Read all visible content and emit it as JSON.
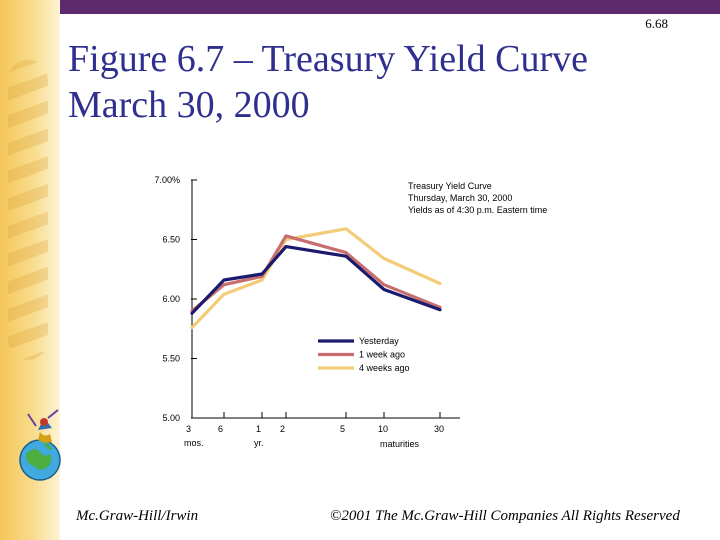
{
  "slide": {
    "number": "6.68",
    "title_line1": "Figure 6.7 – Treasury Yield Curve",
    "title_line2": "March 30, 2000",
    "footer_left": "Mc.Graw-Hill/Irwin",
    "footer_right": "©2001 The Mc.Graw-Hill Companies All Rights Reserved",
    "accent_color": "#5e2a6e",
    "title_color": "#2f2f8f"
  },
  "chart_data": {
    "type": "line",
    "title": "Treasury Yield Curve",
    "subtitle_lines": [
      "Thursday, March 30, 2000",
      "Yields as of 4:30 p.m. Eastern time"
    ],
    "xlabel": "maturities",
    "ylim": [
      5.0,
      7.0
    ],
    "y_ticks": [
      {
        "value": 7.0,
        "label": "7.00%"
      },
      {
        "value": 6.5,
        "label": "6.50"
      },
      {
        "value": 6.0,
        "label": "6.00"
      },
      {
        "value": 5.5,
        "label": "5.50"
      },
      {
        "value": 5.0,
        "label": "5.00"
      }
    ],
    "x_ticks": [
      {
        "label": "3",
        "sublabel": "mos."
      },
      {
        "label": "6",
        "sublabel": ""
      },
      {
        "label": "1",
        "sublabel": "yr."
      },
      {
        "label": "2",
        "sublabel": ""
      },
      {
        "label": "5",
        "sublabel": ""
      },
      {
        "label": "10",
        "sublabel": ""
      },
      {
        "label": "30",
        "sublabel": ""
      }
    ],
    "legend_position": "center-right",
    "series": [
      {
        "name": "Yesterday",
        "color": "#1a1a6e",
        "values": [
          5.88,
          6.16,
          6.21,
          6.44,
          6.36,
          6.08,
          5.91
        ]
      },
      {
        "name": "1 week ago",
        "color": "#c96e6e",
        "values": [
          5.9,
          6.12,
          6.19,
          6.53,
          6.39,
          6.12,
          5.93
        ]
      },
      {
        "name": "4 weeks ago",
        "color": "#f2cc78",
        "values": [
          5.76,
          6.04,
          6.16,
          6.5,
          6.59,
          6.34,
          6.13
        ]
      }
    ]
  },
  "icons": {
    "globe": "globe-figure-icon"
  }
}
